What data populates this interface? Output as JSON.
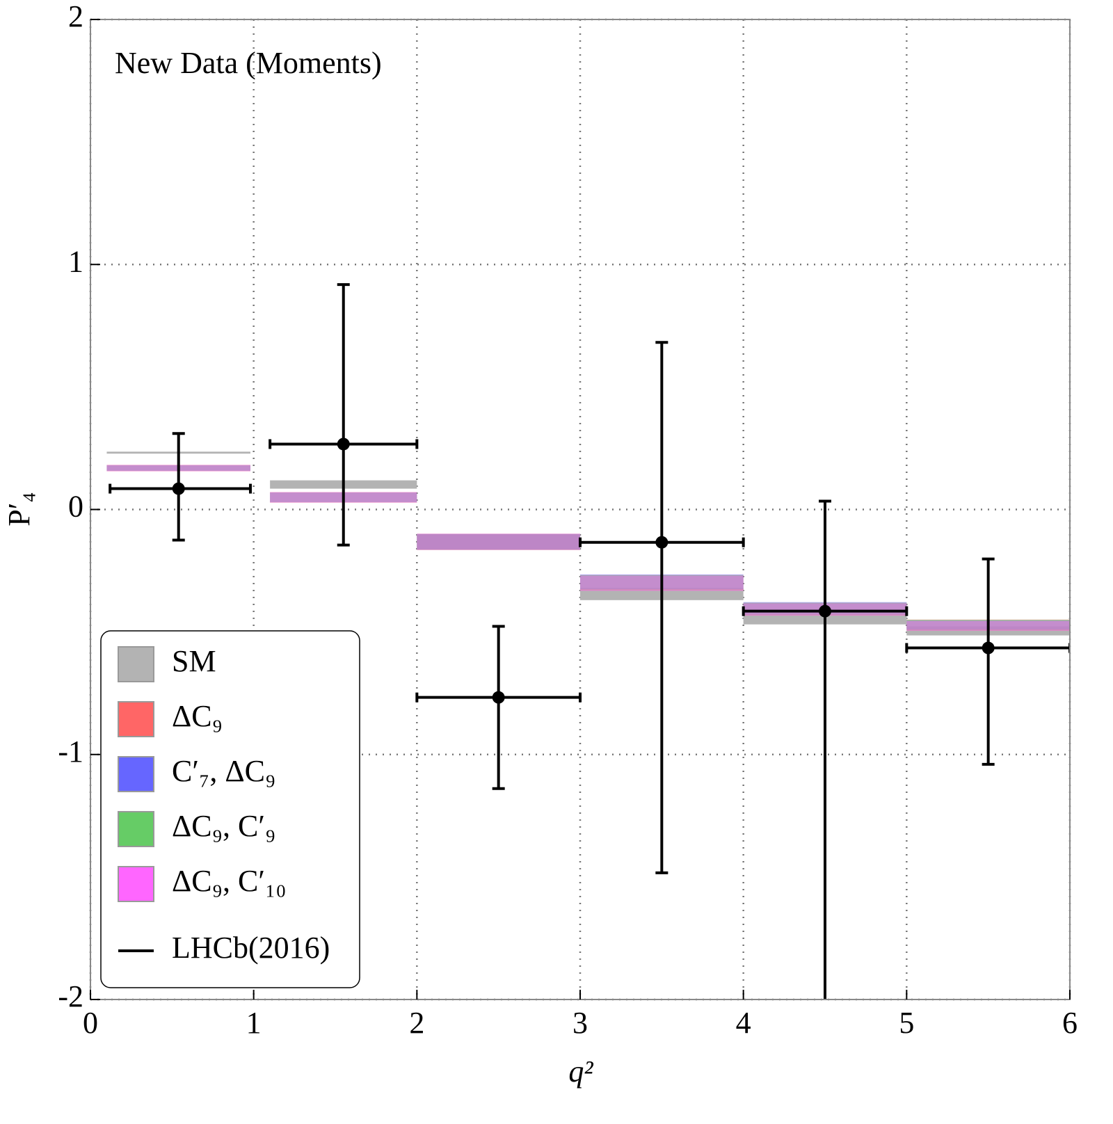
{
  "chart_data": {
    "type": "binned-errorbar",
    "annotation": "New Data (Moments)",
    "xlabel": "q²",
    "ylabel": "P′₄",
    "xlim": [
      0,
      6
    ],
    "ylim": [
      -2,
      2
    ],
    "xticks": [
      0,
      1,
      2,
      3,
      4,
      5,
      6
    ],
    "yticks": [
      -2,
      -1,
      0,
      1,
      2
    ],
    "grid": true,
    "legend": "lower left",
    "bins_low": [
      0.1,
      1.1,
      2,
      3,
      4,
      5
    ],
    "bins_high": [
      0.98,
      2,
      3,
      4,
      5,
      6
    ],
    "series": [
      {
        "name": "SM",
        "color": "#b3b3b3",
        "low": [
          0.228,
          0.085,
          -0.165,
          -0.37,
          -0.469,
          -0.514
        ],
        "high": [
          0.236,
          0.119,
          -0.1,
          -0.32,
          -0.426,
          -0.477
        ]
      },
      {
        "name": "ΔC₉",
        "color": "#ff6666",
        "low": [
          0.156,
          0.028,
          -0.165,
          -0.33,
          -0.432,
          -0.494
        ],
        "high": [
          0.182,
          0.071,
          -0.099,
          -0.267,
          -0.38,
          -0.449
        ]
      },
      {
        "name": "C′₇, ΔC₉",
        "color": "#6666ff",
        "low": [
          0.158,
          0.03,
          -0.163,
          -0.325,
          -0.428,
          -0.49
        ],
        "high": [
          0.18,
          0.069,
          -0.1,
          -0.265,
          -0.378,
          -0.452
        ]
      },
      {
        "name": "ΔC₉, C′₉",
        "color": "#66cc66",
        "low": [
          0.157,
          0.029,
          -0.164,
          -0.328,
          -0.43,
          -0.492
        ],
        "high": [
          0.181,
          0.07,
          -0.1,
          -0.268,
          -0.381,
          -0.45
        ]
      },
      {
        "name": "ΔC₉, C′₁₀",
        "color": "#ff66ff",
        "low": [
          0.156,
          0.028,
          -0.165,
          -0.332,
          -0.433,
          -0.495
        ],
        "high": [
          0.182,
          0.071,
          -0.099,
          -0.27,
          -0.383,
          -0.455
        ]
      }
    ],
    "data": {
      "name": "LHCb(2016)",
      "color": "#000000",
      "x": [
        0.54,
        1.55,
        2.5,
        3.5,
        4.5,
        5.5
      ],
      "x_low": [
        0.12,
        1.1,
        2,
        3,
        4,
        5
      ],
      "x_high": [
        0.98,
        2,
        3,
        4,
        5,
        6
      ],
      "values": [
        0.085,
        0.267,
        -0.767,
        -0.134,
        -0.415,
        -0.565
      ],
      "err_plus": [
        0.225,
        0.651,
        0.29,
        0.816,
        0.449,
        0.363
      ],
      "err_minus": [
        0.21,
        0.412,
        0.372,
        1.349,
        1.7,
        0.475
      ]
    }
  }
}
